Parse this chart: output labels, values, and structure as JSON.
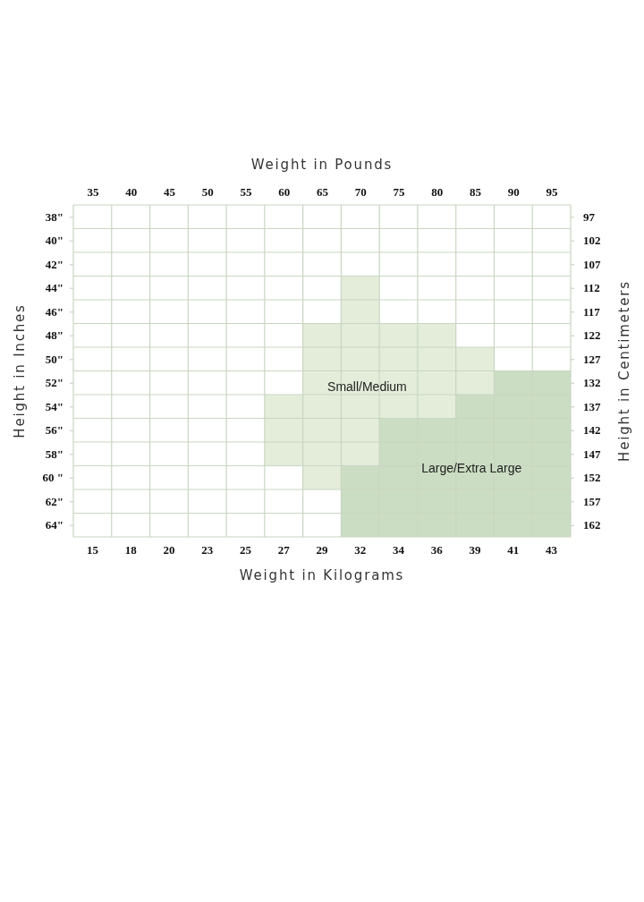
{
  "chart_data": {
    "type": "bar",
    "xlabel": "Weight in Kilograms",
    "x2label": "Weight in Pounds",
    "ylabel": "Height in Inches",
    "y2label": "Height in Centimeters",
    "categories": [
      "15",
      "18",
      "20",
      "23",
      "25",
      "27",
      "29",
      "32",
      "34",
      "36",
      "39",
      "41",
      "43"
    ],
    "x2lim": [
      32.5,
      97.5
    ],
    "x2ticks": [
      35,
      40,
      45,
      50,
      55,
      60,
      65,
      70,
      75,
      80,
      85,
      90,
      95
    ],
    "ylim": [
      65,
      37
    ],
    "yticks": [
      {
        "value": 38,
        "label": "38\""
      },
      {
        "value": 40,
        "label": "40\""
      },
      {
        "value": 42,
        "label": "42\""
      },
      {
        "value": 44,
        "label": "44\""
      },
      {
        "value": 46,
        "label": "46\""
      },
      {
        "value": 48,
        "label": "48\""
      },
      {
        "value": 50,
        "label": "50\""
      },
      {
        "value": 52,
        "label": "52\""
      },
      {
        "value": 54,
        "label": "54\""
      },
      {
        "value": 56,
        "label": "56\""
      },
      {
        "value": 58,
        "label": "58\""
      },
      {
        "value": 60,
        "label": "60 \""
      },
      {
        "value": 62,
        "label": "62\""
      },
      {
        "value": 64,
        "label": "64\""
      }
    ],
    "y2lim": [
      164.5,
      94.5
    ],
    "y2ticks": [
      97,
      102,
      107,
      112,
      117,
      122,
      127,
      132,
      137,
      142,
      147,
      152,
      157,
      162
    ],
    "series": [
      {
        "name": "Small/Medium",
        "color": "#e3edda",
        "base": [
          null,
          null,
          null,
          null,
          null,
          53,
          47,
          43,
          47,
          47,
          49,
          null,
          null
        ],
        "values": [
          null,
          null,
          null,
          null,
          null,
          6,
          14,
          16,
          8,
          8,
          4,
          null,
          null
        ]
      },
      {
        "name": "Large/Extra Large",
        "color": "#cbddc2",
        "base": [
          null,
          null,
          null,
          null,
          null,
          null,
          null,
          59,
          55,
          55,
          53,
          51,
          51
        ],
        "values": [
          null,
          null,
          null,
          null,
          null,
          null,
          null,
          6,
          10,
          10,
          12,
          14,
          14
        ]
      }
    ],
    "grid": true
  }
}
